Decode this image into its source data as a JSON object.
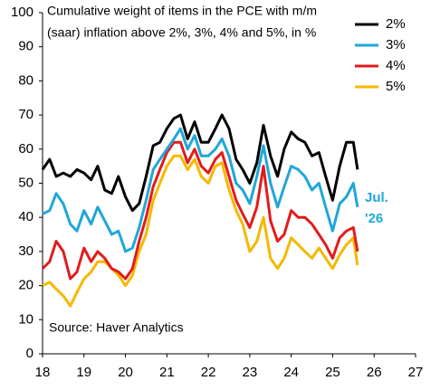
{
  "chart_data": {
    "type": "line",
    "title_lines": [
      "Cumulative weight of items in the PCE with m/m",
      "(saar) inflation above 2%, 3%, 4% and 5%, in %"
    ],
    "source": "Source: Haver Analytics",
    "annotation": {
      "lines": [
        "Jul.",
        "'26"
      ],
      "color": "#1fa7d9"
    },
    "x": [
      18,
      18.17,
      18.33,
      18.5,
      18.67,
      18.83,
      19,
      19.17,
      19.33,
      19.5,
      19.67,
      19.83,
      20,
      20.17,
      20.33,
      20.5,
      20.67,
      20.83,
      21,
      21.17,
      21.33,
      21.5,
      21.67,
      21.83,
      22,
      22.17,
      22.33,
      22.5,
      22.67,
      22.83,
      23,
      23.17,
      23.33,
      23.5,
      23.67,
      23.83,
      24,
      24.17,
      24.33,
      24.5,
      24.67,
      24.83,
      25,
      25.17,
      25.33,
      25.5,
      25.6
    ],
    "series": [
      {
        "name": "2%",
        "color": "#000000",
        "values": [
          54,
          57,
          52,
          53,
          52,
          54,
          53,
          51,
          55,
          48,
          47,
          52,
          46,
          42,
          44,
          52,
          61,
          62,
          66,
          69,
          70,
          63,
          68,
          62,
          62,
          66,
          70,
          66,
          57,
          54,
          50,
          56,
          67,
          58,
          52,
          60,
          65,
          63,
          62,
          58,
          59,
          52,
          45,
          55,
          62,
          62,
          54
        ]
      },
      {
        "name": "3%",
        "color": "#1fa7d9",
        "values": [
          41,
          42,
          47,
          44,
          38,
          36,
          42,
          38,
          43,
          39,
          35,
          36,
          30,
          31,
          37,
          45,
          54,
          57,
          60,
          63,
          66,
          60,
          64,
          58,
          58,
          60,
          63,
          58,
          50,
          48,
          44,
          52,
          61,
          50,
          43,
          49,
          55,
          54,
          52,
          48,
          50,
          43,
          36,
          44,
          46,
          50,
          43
        ]
      },
      {
        "name": "4%",
        "color": "#e31b1b",
        "values": [
          25,
          27,
          33,
          30,
          22,
          24,
          31,
          27,
          30,
          28,
          25,
          24,
          22,
          25,
          33,
          40,
          49,
          54,
          59,
          62,
          62,
          56,
          60,
          55,
          53,
          57,
          59,
          52,
          45,
          41,
          37,
          43,
          55,
          39,
          33,
          35,
          42,
          40,
          40,
          38,
          35,
          32,
          28,
          34,
          36,
          37,
          30
        ]
      },
      {
        "name": "5%",
        "color": "#f5b800",
        "values": [
          20,
          21,
          19,
          17,
          14,
          18,
          22,
          24,
          27,
          27,
          25,
          23,
          20,
          23,
          30,
          35,
          45,
          50,
          55,
          58,
          58,
          54,
          57,
          52,
          50,
          55,
          56,
          48,
          42,
          38,
          30,
          33,
          40,
          28,
          25,
          28,
          34,
          32,
          30,
          28,
          31,
          28,
          25,
          29,
          32,
          34,
          26
        ]
      }
    ],
    "xlim": [
      18,
      27
    ],
    "xticks": [
      18,
      19,
      20,
      21,
      22,
      23,
      24,
      25,
      26,
      27
    ],
    "ylim": [
      0,
      100
    ],
    "yticks": [
      0,
      10,
      20,
      30,
      40,
      50,
      60,
      70,
      80,
      90,
      100
    ],
    "grid": false,
    "legend": "top-right"
  }
}
